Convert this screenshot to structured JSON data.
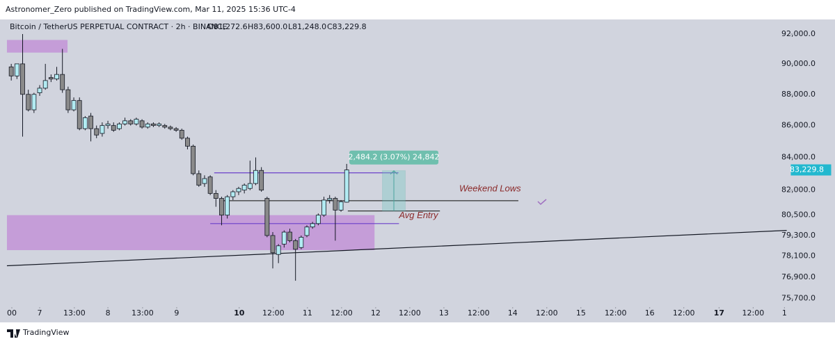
{
  "header": {
    "published": "Astronomer_Zero published on TradingView.com, Mar 11, 2025 15:36 UTC-4"
  },
  "footer": {
    "brand": "TradingView"
  },
  "chart_data": {
    "type": "candlestick",
    "title": "Bitcoin / TetherUS PERPETUAL CONTRACT · 2h · BINANCE",
    "legend_values": [
      "O81,272.6",
      "H83,600.0",
      "L81,248.0",
      "C83,229.8"
    ],
    "log_scale": true,
    "ylim": [
      75300,
      92900
    ],
    "yticks": [
      {
        "value": 92000,
        "label": "92,000.0"
      },
      {
        "value": 90000,
        "label": "90,000.0"
      },
      {
        "value": 88000,
        "label": "88,000.0"
      },
      {
        "value": 86000,
        "label": "86,000.0"
      },
      {
        "value": 84000,
        "label": "84,000.0"
      },
      {
        "value": 82000,
        "label": "82,000.0"
      },
      {
        "value": 80500,
        "label": "80,500.0"
      },
      {
        "value": 79300,
        "label": "79,300.0"
      },
      {
        "value": 78100,
        "label": "78,100.0"
      },
      {
        "value": 76900,
        "label": "76,900.0"
      },
      {
        "value": 75700,
        "label": "75,700.0"
      }
    ],
    "xlim": [
      0,
      138
    ],
    "xticks": [
      {
        "value": 1.1,
        "label": "00"
      },
      {
        "value": 6,
        "label": "7"
      },
      {
        "value": 12.1,
        "label": "13:00"
      },
      {
        "value": 18,
        "label": "8"
      },
      {
        "value": 24.1,
        "label": "13:00"
      },
      {
        "value": 30.1,
        "label": "9"
      },
      {
        "value": 41.1,
        "label": "10"
      },
      {
        "value": 47.1,
        "label": "12:00"
      },
      {
        "value": 53.1,
        "label": "11"
      },
      {
        "value": 59.1,
        "label": "12:00"
      },
      {
        "value": 65.1,
        "label": "12"
      },
      {
        "value": 71.1,
        "label": "12:00"
      },
      {
        "value": 77.1,
        "label": "13"
      },
      {
        "value": 83.2,
        "label": "12:00"
      },
      {
        "value": 89.2,
        "label": "14"
      },
      {
        "value": 95.2,
        "label": "12:00"
      },
      {
        "value": 101.2,
        "label": "15"
      },
      {
        "value": 107.3,
        "label": "12:00"
      },
      {
        "value": 113.3,
        "label": "16"
      },
      {
        "value": 119.3,
        "label": "12:00"
      },
      {
        "value": 125.5,
        "label": "17"
      },
      {
        "value": 131.5,
        "label": "12:00"
      },
      {
        "value": 137,
        "label": "1"
      }
    ],
    "bull_color": "#b2ebf2",
    "bear_color": "#8a8a8a",
    "x": [
      1,
      2,
      3,
      4,
      5,
      6,
      7,
      8,
      9,
      10,
      11,
      12,
      13,
      14,
      15,
      16,
      17,
      18,
      19,
      20,
      21,
      22,
      23,
      24,
      25,
      26,
      27,
      28,
      29,
      30,
      31,
      32,
      33,
      34,
      35,
      36,
      37,
      38,
      39,
      40,
      41,
      42,
      43,
      44,
      45,
      46,
      47,
      48,
      49,
      50,
      51,
      52,
      53,
      54,
      55,
      56,
      57,
      58,
      59,
      60
    ],
    "open": [
      89800,
      89200,
      90000,
      88000,
      87000,
      88100,
      88400,
      89100,
      89000,
      89300,
      88300,
      87000,
      87600,
      85800,
      86600,
      85800,
      85500,
      86000,
      86000,
      85800,
      86100,
      86300,
      86100,
      86300,
      85900,
      86100,
      86000,
      86000,
      85900,
      85800,
      85700,
      85200,
      84700,
      83000,
      82400,
      82800,
      81800,
      81500,
      80500,
      81600,
      81900,
      82000,
      82100,
      82400,
      83200,
      81500,
      79300,
      78200,
      78800,
      79500,
      79000,
      78600,
      79300,
      79800,
      80000,
      80500,
      81400,
      81500,
      80800,
      81272.6
    ],
    "high": [
      90000,
      90000,
      92000,
      88300,
      88100,
      88600,
      90000,
      89300,
      89800,
      91000,
      88500,
      87800,
      87800,
      86600,
      86800,
      86000,
      86200,
      86300,
      86200,
      86200,
      86500,
      86400,
      86500,
      86400,
      86200,
      86200,
      86200,
      86100,
      86000,
      85900,
      85800,
      85300,
      84800,
      83200,
      82900,
      82900,
      82000,
      81600,
      81700,
      82000,
      82200,
      82400,
      83800,
      84000,
      83400,
      81600,
      79500,
      78800,
      79600,
      79700,
      79100,
      79300,
      79900,
      80100,
      80600,
      81600,
      81700,
      81600,
      81400,
      83600
    ],
    "low": [
      88900,
      89000,
      85300,
      86900,
      86800,
      87900,
      88300,
      88800,
      88900,
      88100,
      86800,
      86900,
      85700,
      85700,
      85000,
      85200,
      85300,
      85800,
      85600,
      85700,
      86000,
      86000,
      86000,
      85800,
      85800,
      85900,
      85900,
      85800,
      85700,
      85600,
      85100,
      84500,
      82900,
      82200,
      82200,
      81700,
      81000,
      79900,
      80300,
      81400,
      81700,
      81800,
      82000,
      82300,
      81900,
      79200,
      77400,
      77700,
      78600,
      78900,
      76700,
      78500,
      79200,
      79700,
      79900,
      80400,
      81200,
      79000,
      80700,
      81248
    ],
    "close": [
      89200,
      90000,
      88000,
      87000,
      88000,
      88400,
      88900,
      89000,
      89300,
      88300,
      87000,
      87600,
      85800,
      86500,
      85800,
      85400,
      86000,
      86100,
      85700,
      86100,
      86300,
      86100,
      86400,
      85900,
      86100,
      86000,
      86100,
      85900,
      85800,
      85700,
      85200,
      84700,
      83000,
      82300,
      82700,
      81800,
      81500,
      80500,
      81600,
      81900,
      82100,
      82300,
      82400,
      83200,
      82000,
      79300,
      78300,
      78700,
      79500,
      79000,
      78500,
      79200,
      79800,
      80000,
      80500,
      81400,
      81500,
      80800,
      81300,
      83229.8
    ],
    "last_price_label": "83,229.8",
    "zones": [
      {
        "top": 91600,
        "bottom": 90750,
        "x": [
          0.24,
          10.9
        ]
      },
      {
        "top": 80500,
        "bottom": 78450,
        "x": [
          0.24,
          64.9
        ]
      }
    ],
    "lines": [
      {
        "price": 83050,
        "x": [
          36.7,
          69.1
        ],
        "color": "#6a3fc9"
      },
      {
        "price": 81360,
        "x": [
          37.9,
          90.2
        ],
        "color": "#333333"
      },
      {
        "price": 80750,
        "x": [
          60.2,
          76.4
        ],
        "color": "#333333"
      },
      {
        "price": 80000,
        "x": [
          36,
          69.2
        ],
        "color": "#6a3fc9"
      }
    ],
    "trendline": {
      "x": [
        0.24,
        137.4
      ],
      "price": [
        77550,
        79600
      ]
    },
    "measure": {
      "x": [
        66.3,
        70.3
      ],
      "from": 80750,
      "to": 83180,
      "label": "2,484.2 (3.07%) 24,842"
    },
    "annotations": [
      {
        "text": "Weekend Lows",
        "x": 79.8,
        "price": 82070
      },
      {
        "text": "Avg Entry",
        "x": 69.2,
        "price": 80460
      }
    ]
  }
}
